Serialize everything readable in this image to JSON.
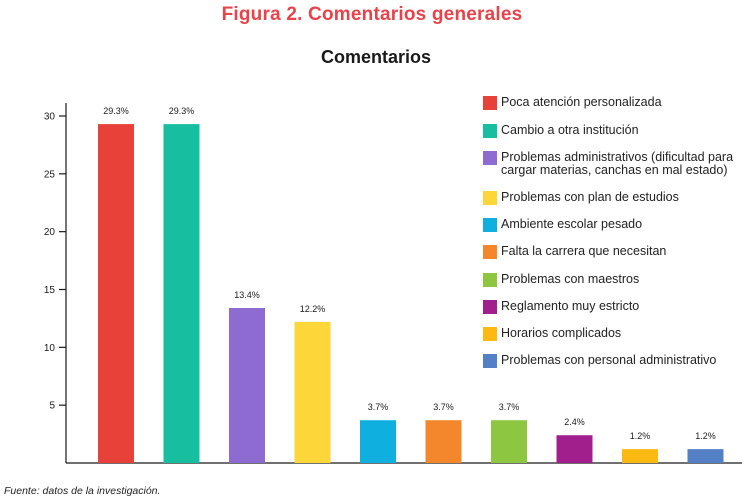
{
  "figure_title": "Figura 2. Comentarios generales",
  "source_note": "Fuente: datos de la investigación.",
  "chart_data": {
    "type": "bar",
    "title": "Comentarios",
    "xlabel": "",
    "ylabel": "",
    "ylim": [
      0,
      30
    ],
    "yticks": [
      5,
      10,
      15,
      20,
      25,
      30
    ],
    "grid": false,
    "legend_position": "right",
    "categories": [
      "Poca atención personalizada",
      "Cambio a otra institución",
      "Problemas administrativos (dificultad para cargar materias, canchas en mal estado)",
      "Problemas con plan de estudios",
      "Ambiente escolar pesado",
      "Falta la carrera que necesitan",
      "Problemas con maestros",
      "Reglamento muy estricto",
      "Horarios complicados",
      "Problemas con personal administrativo"
    ],
    "values": [
      29.3,
      29.3,
      13.4,
      12.2,
      3.7,
      3.7,
      3.7,
      2.4,
      1.2,
      1.2
    ],
    "data_labels": [
      "29.3%",
      "29.3%",
      "13.4%",
      "12.2%",
      "3.7%",
      "3.7%",
      "3.7%",
      "2.4%",
      "1.2%",
      "1.2%"
    ],
    "colors": [
      "#e8413a",
      "#17bfa0",
      "#8e6bd1",
      "#fdd63a",
      "#0fb0e0",
      "#f4862b",
      "#8dc641",
      "#a11f8c",
      "#fbb912",
      "#5480c5"
    ]
  }
}
